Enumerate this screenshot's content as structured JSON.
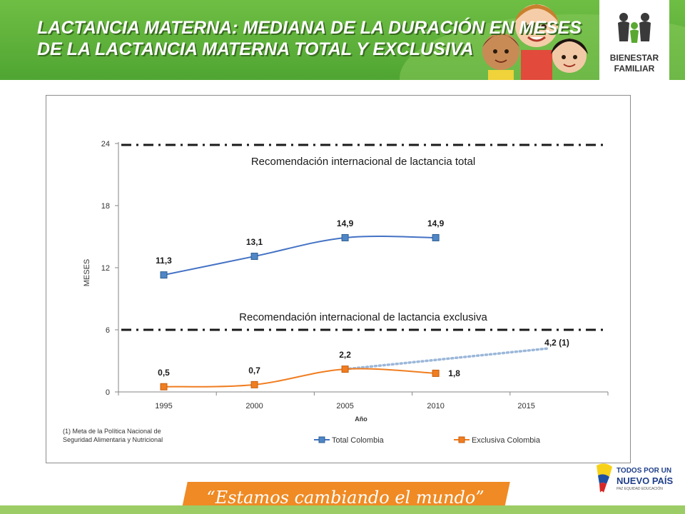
{
  "header": {
    "title_line1": "LACTANCIA MATERNA:  MEDIANA DE LA DURACIÓN EN MESES",
    "title_line2": "DE LA LACTANCIA MATERNA TOTAL Y EXCLUSIVA",
    "logo_line1": "BIENESTAR",
    "logo_line2": "FAMILIAR"
  },
  "chart_data": {
    "type": "line",
    "xlabel": "Año",
    "ylabel": "MESES",
    "xlim": [
      1992.5,
      2019.5
    ],
    "ylim": [
      0,
      24
    ],
    "x_ticks": [
      1995,
      2000,
      2005,
      2010,
      2015
    ],
    "y_ticks": [
      0,
      6,
      12,
      18,
      24
    ],
    "grid": false,
    "legend_position": "bottom",
    "series": [
      {
        "name": "Total Colombia",
        "color": "#4472c4",
        "marker_color": "#4f86c6",
        "x": [
          1995,
          2000,
          2005,
          2010
        ],
        "y": [
          11.3,
          13.1,
          14.9,
          14.9
        ],
        "labels": [
          "11,3",
          "13,1",
          "14,9",
          "14,9"
        ]
      },
      {
        "name": "Exclusiva Colombia",
        "color": "#f07d20",
        "marker_color": "#f07d20",
        "x": [
          1995,
          2000,
          2005,
          2010
        ],
        "y": [
          0.5,
          0.7,
          2.2,
          1.8
        ],
        "labels": [
          "0,5",
          "0,7",
          "2,2",
          "1,8"
        ]
      }
    ],
    "target_line": {
      "color": "#9bb7d9",
      "from": {
        "x": 2005,
        "y": 2.2
      },
      "to": {
        "x": 2016.2,
        "y": 4.2
      },
      "label": "4,2  (1)"
    },
    "reference_lines": [
      {
        "y": 24,
        "label": "Recomendación internacional de lactancia total"
      },
      {
        "y": 6,
        "label": "Recomendación internacional de lactancia exclusiva"
      }
    ]
  },
  "note": {
    "line1": "(1) Meta  de la Política Nacional de",
    "line2": "Seguridad Alimentaria y Nutricional"
  },
  "footer": {
    "slogan": "“Estamos cambiando el mundo”",
    "brand_line1": "TODOS POR UN",
    "brand_line2": "NUEVO PAÍS",
    "brand_line3": "PAZ  EQUIDAD  EDUCACIÓN"
  }
}
